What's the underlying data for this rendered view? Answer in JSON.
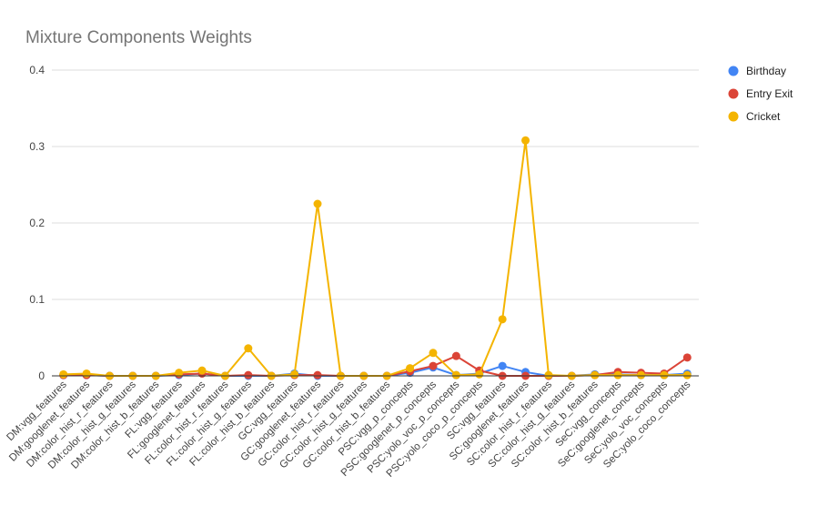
{
  "chart_data": {
    "type": "line",
    "title": "Mixture Components Weights",
    "xlabel": "",
    "ylabel": "",
    "ylim": [
      0,
      0.4
    ],
    "yticks": [
      "0",
      "0.1",
      "0.2",
      "0.3",
      "0.4"
    ],
    "grid": true,
    "legend_position": "right",
    "categories": [
      "DM:vgg_features",
      "DM:googlenet_features",
      "DM:color_hist_r_features",
      "DM:color_hist_g_features",
      "DM:color_hist_b_features",
      "FL:vgg_features",
      "FL:googlenet_features",
      "FL:color_hist_r_features",
      "FL:color_hist_g_features",
      "FL:color_hist_b_features",
      "GC:vgg_features",
      "GC:googlenet_features",
      "GC:color_hist_r_features",
      "GC:color_hist_g_features",
      "GC:color_hist_b_features",
      "PSC:vgg_p_concepts",
      "PSC:googlenet_p_concepts",
      "PSC:yolo_voc_p_concepts",
      "PSC:yolo_coco_p_concepts",
      "SC:vgg_features",
      "SC:googlenet_features",
      "SC:color_hist_r_features",
      "SC:color_hist_g_features",
      "SC:color_hist_b_features",
      "SeC:vgg_concepts",
      "SeC:googlenet_concepts",
      "SeC:yolo_voc_concepts",
      "SeC:yolo_coco_concepts"
    ],
    "series": [
      {
        "name": "Birthday",
        "color": "#4285f4",
        "values": [
          0.001,
          0.001,
          0.0,
          0.0,
          0.0,
          0.001,
          0.003,
          0.0,
          0.0,
          0.0,
          0.003,
          0.0,
          0.0,
          0.0,
          0.0,
          0.004,
          0.011,
          0.001,
          0.003,
          0.013,
          0.005,
          0.0,
          0.0,
          0.002,
          0.002,
          0.001,
          0.001,
          0.003
        ]
      },
      {
        "name": "Entry Exit",
        "color": "#db4437",
        "values": [
          0.001,
          0.001,
          0.0,
          0.0,
          0.0,
          0.002,
          0.003,
          0.0,
          0.001,
          0.0,
          0.001,
          0.001,
          0.0,
          0.0,
          0.0,
          0.006,
          0.013,
          0.026,
          0.007,
          0.0,
          0.0,
          0.0,
          0.0,
          0.001,
          0.005,
          0.004,
          0.003,
          0.024
        ]
      },
      {
        "name": "Cricket",
        "color": "#f4b400",
        "values": [
          0.002,
          0.003,
          0.0,
          0.0,
          0.0,
          0.004,
          0.007,
          0.0,
          0.036,
          0.0,
          0.002,
          0.225,
          0.0,
          0.0,
          0.0,
          0.01,
          0.03,
          0.001,
          0.002,
          0.074,
          0.308,
          0.001,
          0.0,
          0.001,
          0.001,
          0.001,
          0.001,
          0.001
        ]
      }
    ]
  }
}
